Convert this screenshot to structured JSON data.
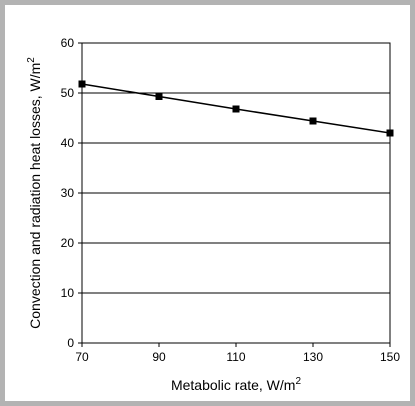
{
  "chart_data": {
    "type": "line",
    "title": "",
    "xlabel": "Metabolic rate, W/m",
    "xlabel_sup": "2",
    "ylabel": "Convection and radiation heat losses, W/m",
    "ylabel_sup": "2",
    "x": [
      70,
      90,
      110,
      130,
      150
    ],
    "series": [
      {
        "values": [
          51.8,
          49.3,
          46.8,
          44.4,
          42.0
        ],
        "color": "#000000",
        "marker": "square"
      }
    ],
    "xlim": [
      70,
      150
    ],
    "ylim": [
      0,
      60
    ],
    "xticks": [
      70,
      90,
      110,
      130,
      150
    ],
    "yticks": [
      0,
      10,
      20,
      30,
      40,
      50,
      60
    ],
    "xtick_labels": [
      "70",
      "90",
      "110",
      "130",
      "150"
    ],
    "ytick_labels": [
      "0",
      "10",
      "20",
      "30",
      "40",
      "50",
      "60"
    ],
    "grid": "horizontal",
    "legend": "none"
  }
}
